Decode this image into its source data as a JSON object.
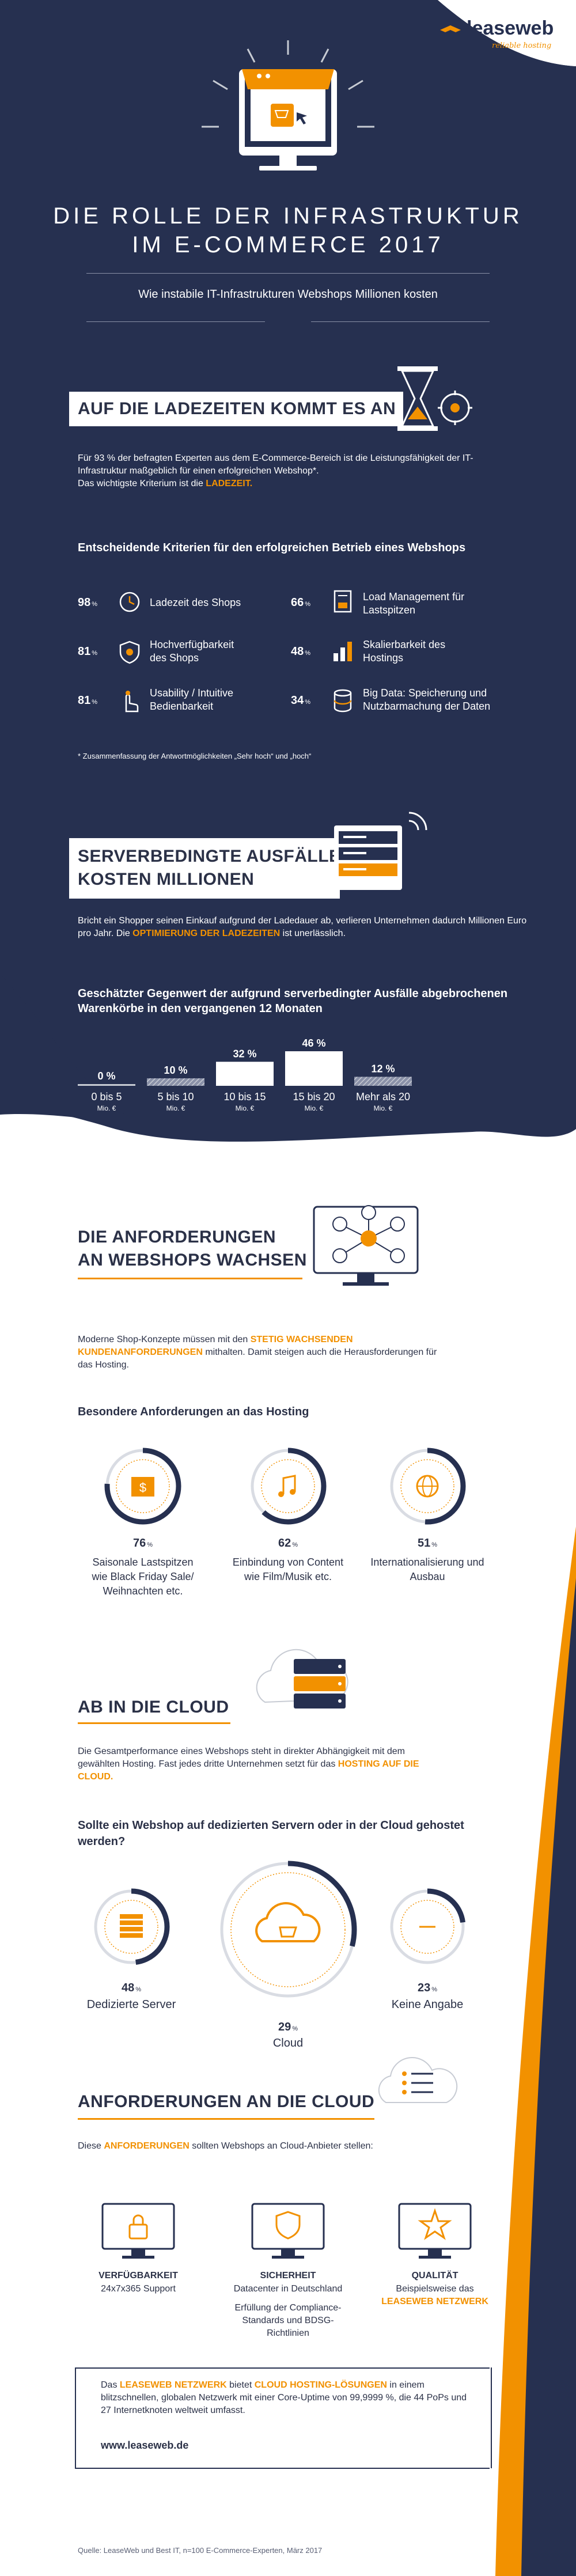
{
  "logo": {
    "brand": "leaseweb",
    "tagline": "reliable hosting"
  },
  "header": {
    "title_line1": "DIE ROLLE DER INFRASTRUKTUR",
    "title_line2": "IM E-COMMERCE 2017",
    "subtitle": "Wie instabile IT-Infrastrukturen Webshops Millionen kosten"
  },
  "section1": {
    "heading": "AUF DIE LADEZEITEN KOMMT ES AN",
    "text_a": "Für 93 % der befragten Experten aus dem E-Commerce-Bereich ist die Leistungsfähigkeit der IT-Infrastruktur maßgeblich für einen erfolgreichen Webshop*.",
    "text_b": "Das wichtigste Kriterium ist die",
    "text_hl": "LADEZEIT.",
    "subheading": "Entscheidende Kriterien für den erfolgreichen Betrieb eines Webshops",
    "criteria": [
      {
        "pct": "98",
        "label": "Ladezeit des Shops",
        "icon": "clock-icon"
      },
      {
        "pct": "81",
        "label": "Hochverfügbarkeit des Shops",
        "icon": "shield-icon"
      },
      {
        "pct": "81",
        "label": "Usability / Intuitive Bedienbarkeit",
        "icon": "hand-icon"
      },
      {
        "pct": "66",
        "label": "Load Management für Lastspitzen",
        "icon": "gauge-icon"
      },
      {
        "pct": "48",
        "label": "Skalierbarkeit des Hostings",
        "icon": "scale-icon"
      },
      {
        "pct": "34",
        "label": "Big Data: Speicherung und Nutzbarmachung der Daten",
        "icon": "data-icon"
      }
    ],
    "percent_sign": "%",
    "footnote": "* Zusammenfassung der Antwortmöglichkeiten „Sehr hoch“ und „hoch“"
  },
  "section2": {
    "heading_line1": "SERVERBEDINGTE AUSFÄLLE",
    "heading_line2": "KOSTEN MILLIONEN",
    "text": "Bricht ein Shopper seinen Einkauf aufgrund der Ladedauer ab, verlieren Unternehmen dadurch Millionen Euro pro Jahr. Die",
    "text_hl": "OPTIMIERUNG DER LADEZEITEN",
    "text_end": "ist unerlässlich.",
    "chart_title": "Geschätzter Gegenwert der aufgrund serverbedingter Ausfälle abgebrochenen Warenkörbe in den vergangenen 12 Monaten"
  },
  "chart_data": {
    "type": "bar",
    "title": "Geschätzter Gegenwert der aufgrund serverbedingter Ausfälle abgebrochenen Warenkörbe in den vergangenen 12 Monaten",
    "categories": [
      "0 bis 5",
      "5 bis 10",
      "10 bis 15",
      "15 bis 20",
      "Mehr als 20"
    ],
    "unit": "Mio. €",
    "values": [
      0,
      10,
      32,
      46,
      12
    ],
    "value_suffix": "%",
    "ylim": [
      0,
      46
    ]
  },
  "section3": {
    "heading_line1": "DIE ANFORDERUNGEN",
    "heading_line2": "AN WEBSHOPS WACHSEN",
    "text_a": "Moderne Shop-Konzepte müssen mit den",
    "text_hl": "STETIG WACHSENDEN KUNDENANFORDERUNGEN",
    "text_b": "mithalten. Damit steigen auch die Herausforderungen für das Hosting.",
    "subheading": "Besondere Anforderungen an das Hosting",
    "items": [
      {
        "pct": 76,
        "label": "Saisonale Lastspitzen wie Black Friday Sale/ Weihnachten etc.",
        "icon": "calendar-icon"
      },
      {
        "pct": 62,
        "label": "Einbindung von Content wie Film/Musik etc.",
        "icon": "music-note-icon"
      },
      {
        "pct": 51,
        "label": "Internationalisierung und Ausbau",
        "icon": "globe-icon"
      }
    ]
  },
  "section4": {
    "heading": "AB IN DIE CLOUD",
    "text_a": "Die Gesamtperformance eines Webshops steht in direkter Abhängigkeit mit dem gewählten Hosting. Fast jedes dritte Unternehmen setzt für das",
    "text_hl": "HOSTING AUF DIE CLOUD.",
    "question": "Sollte ein Webshop auf dedizierten Servern oder in der Cloud gehostet werden?",
    "options": [
      {
        "pct": 48,
        "label": "Dedizierte Server",
        "icon": "server-icon"
      },
      {
        "pct": 29,
        "label": "Cloud",
        "icon": "cloud-cart-icon"
      },
      {
        "pct": 23,
        "label": "Keine Angabe",
        "icon": "dash-icon"
      }
    ]
  },
  "section5": {
    "heading": "ANFORDERUNGEN AN DIE CLOUD",
    "text_a": "Diese",
    "text_hl": "ANFORDERUNGEN",
    "text_b": "sollten Webshops an Cloud-Anbieter stellen:",
    "reqs": [
      {
        "title": "VERFÜGBARKEIT",
        "lines": [
          "24x7x365 Support"
        ],
        "icon": "lock-monitor-icon"
      },
      {
        "title": "SICHERHEIT",
        "lines": [
          "Datacenter in Deutschland",
          "Erfüllung der Compliance-Standards und BDSG-Richtlinien"
        ],
        "icon": "shield-monitor-icon"
      },
      {
        "title": "QUALITÄT",
        "lines": [
          "Beispielsweise das"
        ],
        "hl": "LEASEWEB NETZWERK",
        "icon": "star-monitor-icon"
      }
    ]
  },
  "footer_box": {
    "text_a": "Das",
    "hl1": "LEASEWEB NETZWERK",
    "text_b": "bietet",
    "hl2": "CLOUD HOSTING-LÖSUNGEN",
    "text_c": "in einem blitzschnellen, globalen Netzwerk mit einer Core-Uptime von 99,9999 %, die 44 PoPs und 27 Internetknoten weltweit umfasst.",
    "url": "www.leaseweb.de"
  },
  "source": "Quelle: LeaseWeb und Best IT, n=100 E-Commerce-Experten, März 2017",
  "colors": {
    "navy": "#263050",
    "orange": "#f29100",
    "white": "#ffffff",
    "grey": "#c7cbd3"
  }
}
